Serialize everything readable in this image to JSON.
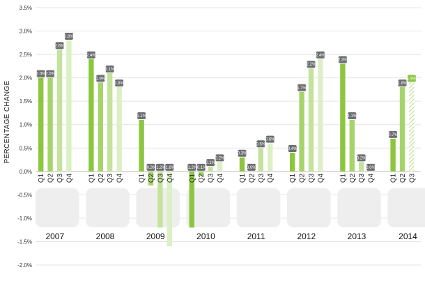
{
  "chart_data": {
    "type": "bar",
    "title": "",
    "xlabel": "",
    "ylabel": "PERCENTAGE CHANGE",
    "ylim": [
      -2.0,
      3.5
    ],
    "yticks": [
      "3.5%",
      "3.0%",
      "2.5%",
      "2.0%",
      "1.5%",
      "1.0%",
      "0.5%",
      "0.0%",
      "-0.5%",
      "-1.0%",
      "-1.5%",
      "-2.0%"
    ],
    "grid": true,
    "quarter_labels": [
      "Q1",
      "Q2",
      "Q3",
      "Q4"
    ],
    "bar_colors": [
      "#8cc63f",
      "#a6d46a",
      "#c4e29c",
      "#dcefc5"
    ],
    "label_badge_color": "#6d6e71",
    "years": [
      {
        "year": "2007",
        "values": [
          2.0,
          2.0,
          2.6,
          2.8
        ],
        "labels": [
          "2.0%",
          "2.0%",
          "2.6%",
          "2.8%"
        ]
      },
      {
        "year": "2008",
        "values": [
          2.4,
          1.9,
          2.1,
          1.8
        ],
        "labels": [
          "2.4%",
          "1.9%",
          "2.1%",
          "1.8%"
        ]
      },
      {
        "year": "2009",
        "values": [
          1.1,
          -0.3,
          -1.2,
          -1.6
        ],
        "labels": [
          "1.1%",
          "-0.3%",
          "-1.2%",
          "-1.6%"
        ]
      },
      {
        "year": "2010",
        "values": [
          -1.2,
          -0.1,
          0.1,
          0.2
        ],
        "labels": [
          "-1.2%",
          "-0.1%",
          "0.1%",
          "0.2%"
        ]
      },
      {
        "year": "2011",
        "values": [
          0.3,
          0.0,
          0.5,
          0.6
        ],
        "labels": [
          "0.3%",
          "0.0%",
          "0.5%",
          "0.6%"
        ]
      },
      {
        "year": "2012",
        "values": [
          0.4,
          1.7,
          2.2,
          2.4
        ],
        "labels": [
          "0.4%",
          "1.7%",
          "2.2%",
          "2.4%"
        ]
      },
      {
        "year": "2013",
        "values": [
          2.3,
          1.1,
          0.2,
          0.0
        ],
        "labels": [
          "2.3%",
          "1.1%",
          "0.2%",
          "0.0%"
        ]
      },
      {
        "year": "2014",
        "values": [
          0.7,
          1.8,
          1.9
        ],
        "labels": [
          "0.7%",
          "1.8%",
          "1.9%"
        ],
        "projected_last": true
      }
    ]
  }
}
